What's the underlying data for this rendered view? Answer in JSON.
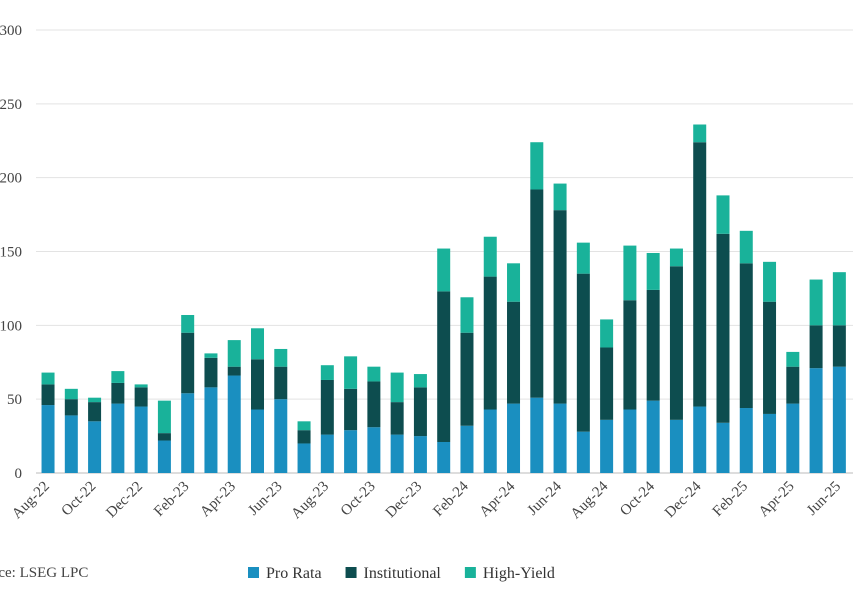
{
  "chart_data": {
    "type": "stacked-bar",
    "source": "Source: LSEG LPC",
    "categories": [
      "Aug-22",
      null,
      "Oct-22",
      null,
      "Dec-22",
      null,
      "Feb-23",
      null,
      "Apr-23",
      null,
      "Jun-23",
      null,
      "Aug-23",
      null,
      "Oct-23",
      null,
      "Dec-23",
      null,
      "Feb-24",
      null,
      "Apr-24",
      null,
      "Jun-24",
      null,
      "Aug-24",
      null,
      "Oct-24",
      null,
      "Dec-24",
      null,
      "Feb-25",
      null,
      "Apr-25",
      null,
      "Jun-25"
    ],
    "series": [
      {
        "name": "Pro Rata",
        "color": "#1a8fc0",
        "values": [
          46,
          39,
          35,
          47,
          45,
          22,
          54,
          58,
          66,
          43,
          50,
          20,
          26,
          29,
          31,
          26,
          25,
          21,
          32,
          43,
          47,
          51,
          47,
          28,
          36,
          43,
          49,
          36,
          45,
          34,
          44,
          40,
          47,
          71,
          72
        ]
      },
      {
        "name": "Institutional",
        "color": "#0d4d4f",
        "values": [
          14,
          11,
          13,
          14,
          13,
          5,
          41,
          20,
          6,
          34,
          22,
          9,
          37,
          28,
          31,
          22,
          33,
          102,
          63,
          90,
          69,
          141,
          131,
          107,
          49,
          74,
          75,
          104,
          179,
          128,
          98,
          76,
          25,
          29,
          28
        ]
      },
      {
        "name": "High-Yield",
        "color": "#19b29a",
        "values": [
          8,
          7,
          3,
          8,
          2,
          22,
          12,
          3,
          18,
          21,
          12,
          6,
          10,
          22,
          10,
          20,
          9,
          29,
          24,
          27,
          26,
          32,
          18,
          21,
          19,
          37,
          25,
          12,
          12,
          26,
          22,
          27,
          10,
          31,
          36
        ]
      }
    ],
    "ylim": [
      0,
      300
    ],
    "yticks": [
      0,
      50,
      100,
      150,
      200,
      250,
      300
    ],
    "grid": true
  }
}
